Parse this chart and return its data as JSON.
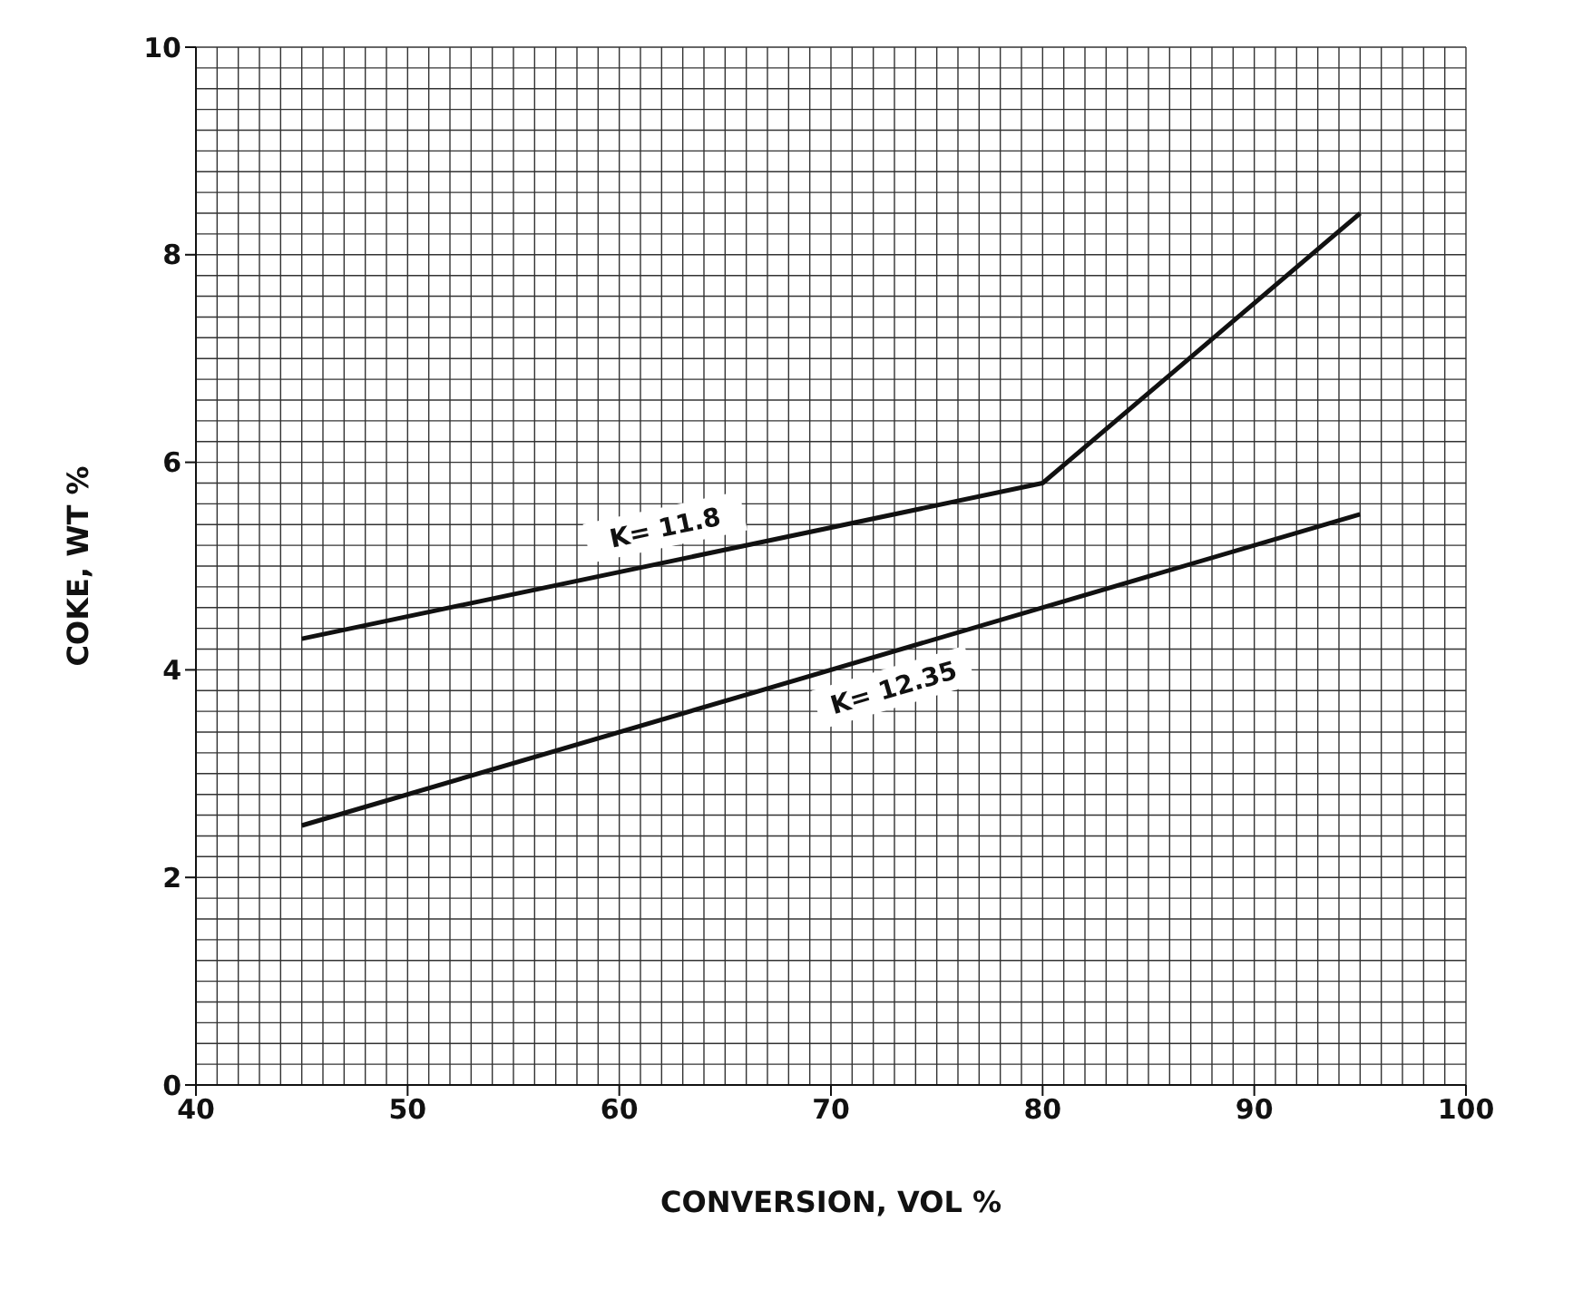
{
  "chart_data": {
    "type": "line",
    "xlabel": "CONVERSION, VOL %",
    "ylabel": "COKE, WT %",
    "xlim": [
      40,
      100
    ],
    "xticks": [
      40,
      50,
      60,
      70,
      80,
      90,
      100
    ],
    "ylim": [
      0,
      10
    ],
    "yticks": [
      0,
      2,
      4,
      6,
      8,
      10
    ],
    "grid": true,
    "legend": false,
    "marker": "none",
    "line_style": "solid",
    "series": [
      {
        "name": "K= 11.8",
        "color": "#111111",
        "x": [
          45,
          80,
          95
        ],
        "values": [
          4.3,
          5.8,
          8.4
        ]
      },
      {
        "name": "K= 12.35",
        "color": "#111111",
        "x": [
          45,
          95
        ],
        "values": [
          2.5,
          5.5
        ]
      }
    ]
  }
}
